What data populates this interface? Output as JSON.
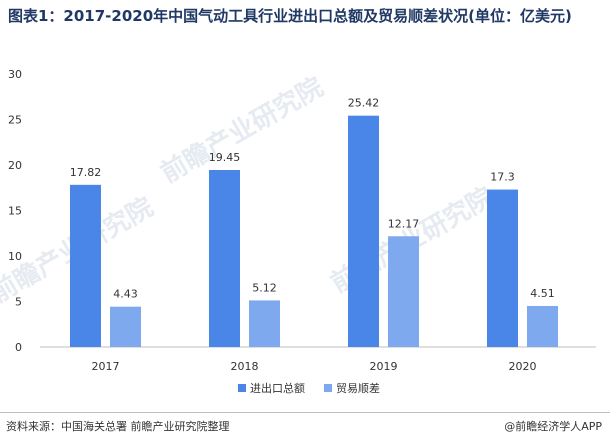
{
  "title": "图表1：2017-2020年中国气动工具行业进出口总额及贸易顺差状况(单位：亿美元)",
  "source": "资料来源：中国海关总署 前瞻产业研究院整理",
  "brand": "@前瞻经济学人APP",
  "watermark": "前瞻产业研究院",
  "colors": {
    "series1": "#4a86e8",
    "series2": "#7fa9ee"
  },
  "chart_data": {
    "type": "bar",
    "categories": [
      "2017",
      "2018",
      "2019",
      "2020"
    ],
    "series": [
      {
        "name": "进出口总额",
        "values": [
          17.82,
          19.45,
          25.42,
          17.3
        ]
      },
      {
        "name": "贸易顺差",
        "values": [
          4.43,
          5.12,
          12.17,
          4.51
        ]
      }
    ],
    "ylim": [
      0,
      30
    ],
    "yticks": [
      0,
      5,
      10,
      15,
      20,
      25,
      30
    ],
    "grid": false,
    "legend_position": "bottom"
  }
}
